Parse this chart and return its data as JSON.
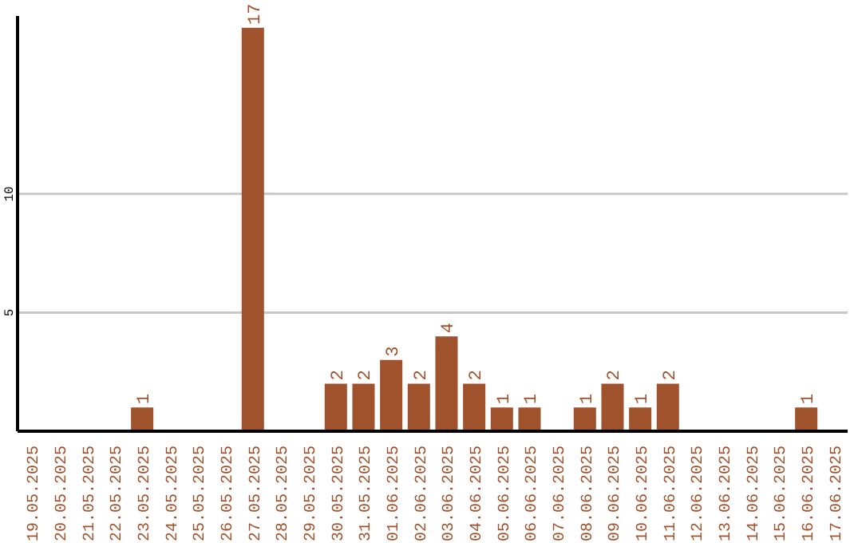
{
  "chart_data": {
    "type": "bar",
    "categories": [
      "19.05.2025",
      "20.05.2025",
      "21.05.2025",
      "22.05.2025",
      "23.05.2025",
      "24.05.2025",
      "25.05.2025",
      "26.05.2025",
      "27.05.2025",
      "28.05.2025",
      "29.05.2025",
      "30.05.2025",
      "31.05.2025",
      "01.06.2025",
      "02.06.2025",
      "03.06.2025",
      "04.06.2025",
      "05.06.2025",
      "06.06.2025",
      "07.06.2025",
      "08.06.2025",
      "09.06.2025",
      "10.06.2025",
      "11.06.2025",
      "12.06.2025",
      "13.06.2025",
      "14.06.2025",
      "15.06.2025",
      "16.06.2025",
      "17.06.2025"
    ],
    "values": [
      0,
      0,
      0,
      0,
      1,
      0,
      0,
      0,
      17,
      0,
      0,
      2,
      2,
      3,
      2,
      4,
      2,
      1,
      1,
      0,
      1,
      2,
      1,
      2,
      0,
      0,
      0,
      0,
      1,
      0
    ],
    "value_labels": [
      null,
      null,
      null,
      null,
      "1",
      null,
      null,
      null,
      "17",
      null,
      null,
      "2",
      "2",
      "3",
      "2",
      "4",
      "2",
      "1",
      "1",
      null,
      "1",
      "2",
      "1",
      "2",
      null,
      null,
      null,
      null,
      "1",
      null
    ],
    "color": "#a0522d",
    "ylim": [
      0,
      17.5
    ],
    "yticks": [
      5,
      10
    ],
    "grid": "y"
  }
}
